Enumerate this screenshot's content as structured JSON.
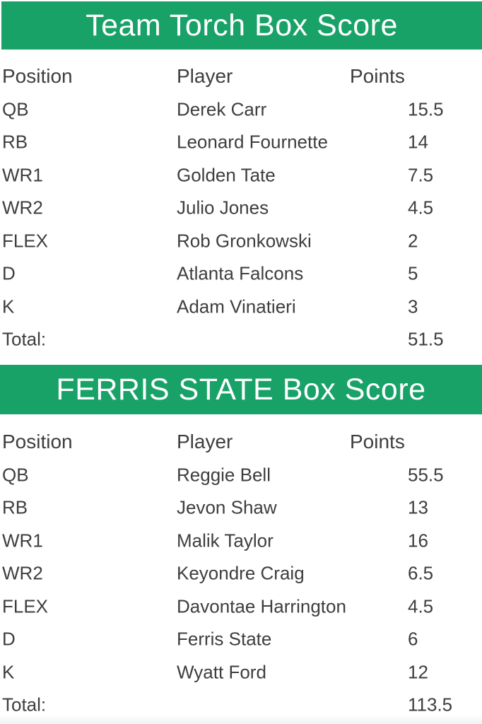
{
  "colors": {
    "banner_green": "#18a268",
    "banner_text": "#ffffff",
    "body_text": "#3e3e3e",
    "footer_strip": "#f1f2f2"
  },
  "tables": [
    {
      "title": "Team Torch Box Score",
      "headers": {
        "position": "Position",
        "player": "Player",
        "points": "Points"
      },
      "rows": [
        {
          "position": "QB",
          "player": "Derek Carr",
          "points": "15.5"
        },
        {
          "position": "RB",
          "player": "Leonard Fournette",
          "points": "14"
        },
        {
          "position": "WR1",
          "player": "Golden Tate",
          "points": "7.5"
        },
        {
          "position": "WR2",
          "player": "Julio Jones",
          "points": "4.5"
        },
        {
          "position": "FLEX",
          "player": "Rob Gronkowski",
          "points": "2"
        },
        {
          "position": "D",
          "player": "Atlanta Falcons",
          "points": "5"
        },
        {
          "position": "K",
          "player": "Adam Vinatieri",
          "points": "3"
        }
      ],
      "total_label": "Total:",
      "total_points": "51.5"
    },
    {
      "title": "FERRIS STATE Box Score",
      "headers": {
        "position": "Position",
        "player": "Player",
        "points": "Points"
      },
      "rows": [
        {
          "position": "QB",
          "player": "Reggie Bell",
          "points": "55.5"
        },
        {
          "position": "RB",
          "player": "Jevon Shaw",
          "points": "13"
        },
        {
          "position": "WR1",
          "player": "Malik Taylor",
          "points": "16"
        },
        {
          "position": "WR2",
          "player": "Keyondre Craig",
          "points": "6.5"
        },
        {
          "position": "FLEX",
          "player": "Davontae Harrington",
          "points": "4.5"
        },
        {
          "position": "D",
          "player": "Ferris State",
          "points": "6"
        },
        {
          "position": "K",
          "player": "Wyatt Ford",
          "points": "12"
        }
      ],
      "total_label": "Total:",
      "total_points": "113.5"
    }
  ],
  "chart_data": [
    {
      "type": "table",
      "title": "Team Torch Box Score",
      "columns": [
        "Position",
        "Player",
        "Points"
      ],
      "rows": [
        [
          "QB",
          "Derek Carr",
          15.5
        ],
        [
          "RB",
          "Leonard Fournette",
          14
        ],
        [
          "WR1",
          "Golden Tate",
          7.5
        ],
        [
          "WR2",
          "Julio Jones",
          4.5
        ],
        [
          "FLEX",
          "Rob Gronkowski",
          2
        ],
        [
          "D",
          "Atlanta Falcons",
          5
        ],
        [
          "K",
          "Adam Vinatieri",
          3
        ]
      ],
      "total": 51.5
    },
    {
      "type": "table",
      "title": "FERRIS STATE Box Score",
      "columns": [
        "Position",
        "Player",
        "Points"
      ],
      "rows": [
        [
          "QB",
          "Reggie Bell",
          55.5
        ],
        [
          "RB",
          "Jevon Shaw",
          13
        ],
        [
          "WR1",
          "Malik Taylor",
          16
        ],
        [
          "WR2",
          "Keyondre Craig",
          6.5
        ],
        [
          "FLEX",
          "Davontae Harrington",
          4.5
        ],
        [
          "D",
          "Ferris State",
          6
        ],
        [
          "K",
          "Wyatt Ford",
          12
        ]
      ],
      "total": 113.5
    }
  ]
}
